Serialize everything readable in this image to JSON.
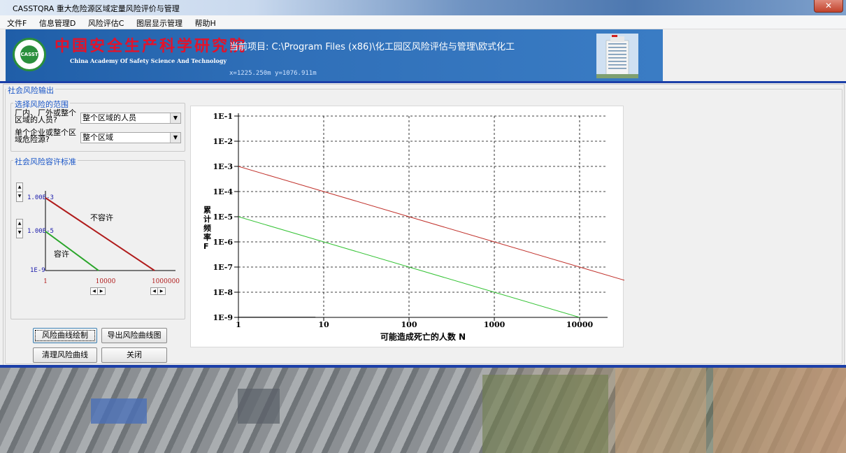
{
  "window": {
    "title": "CASSTQRA 重大危险源区域定量风险评价与管理",
    "close": "✕"
  },
  "menu": [
    {
      "label": "文件F"
    },
    {
      "label": "信息管理D"
    },
    {
      "label": "风险评估C"
    },
    {
      "label": "图层显示管理"
    },
    {
      "label": "帮助H"
    }
  ],
  "banner": {
    "org_cn": "中国安全生产科学研究院",
    "org_en": "China Academy Of Safety Science And Technology",
    "logo_text": "CASST",
    "project": "当前项目: C:\\Program Files (x86)\\化工园区风险评估与管理\\欧式化工",
    "coords": "x=1225.250m  y=1076.911m"
  },
  "panel": {
    "title": "社会风险输出",
    "scope": {
      "title": "选择风险的范围",
      "row1_label": "厂内、厂外或整个区域的人员?",
      "row1_value": "整个区域的人员",
      "row2_label": "单个企业或整个区域危险源?",
      "row2_value": "整个区域"
    },
    "criteria": {
      "title": "社会风险容许标准",
      "upper_value": "1.00E-3",
      "lower_value": "1.00E-5",
      "y_min": "1E-9",
      "x_min": "1",
      "x_mid": "10000",
      "x_max": "1000000",
      "label_intolerable": "不容许",
      "label_tolerable": "容许"
    },
    "buttons": {
      "draw": "风险曲线绘制",
      "export": "导出风险曲线图",
      "clear": "清理风险曲线",
      "close": "关闭"
    }
  },
  "chart_data": {
    "type": "line",
    "xscale": "log",
    "yscale": "log",
    "xlabel": "可能造成死亡的人数 N",
    "ylabel": "累计频率F",
    "xlim": [
      1,
      10000
    ],
    "ylim": [
      1e-09,
      0.1
    ],
    "x_ticks": [
      "1",
      "10",
      "100",
      "1000",
      "10000"
    ],
    "y_ticks": [
      "1E-9",
      "1E-8",
      "1E-7",
      "1E-6",
      "1E-5",
      "1E-4",
      "1E-3",
      "1E-2",
      "1E-1"
    ],
    "grid": true,
    "series": [
      {
        "color": "#c0302a",
        "x": [
          1,
          10,
          100,
          1000,
          10000,
          40000
        ],
        "y": [
          0.001,
          0.0001,
          1e-05,
          1e-06,
          1e-07,
          2.5e-08
        ]
      },
      {
        "color": "#33c233",
        "x": [
          1,
          10,
          100,
          1000,
          10000
        ],
        "y": [
          1e-05,
          1e-06,
          1e-07,
          1e-08,
          1e-09
        ]
      },
      {
        "color": "#000000",
        "x": [
          1,
          8
        ],
        "y": [
          1e-09,
          1e-09
        ]
      }
    ]
  }
}
